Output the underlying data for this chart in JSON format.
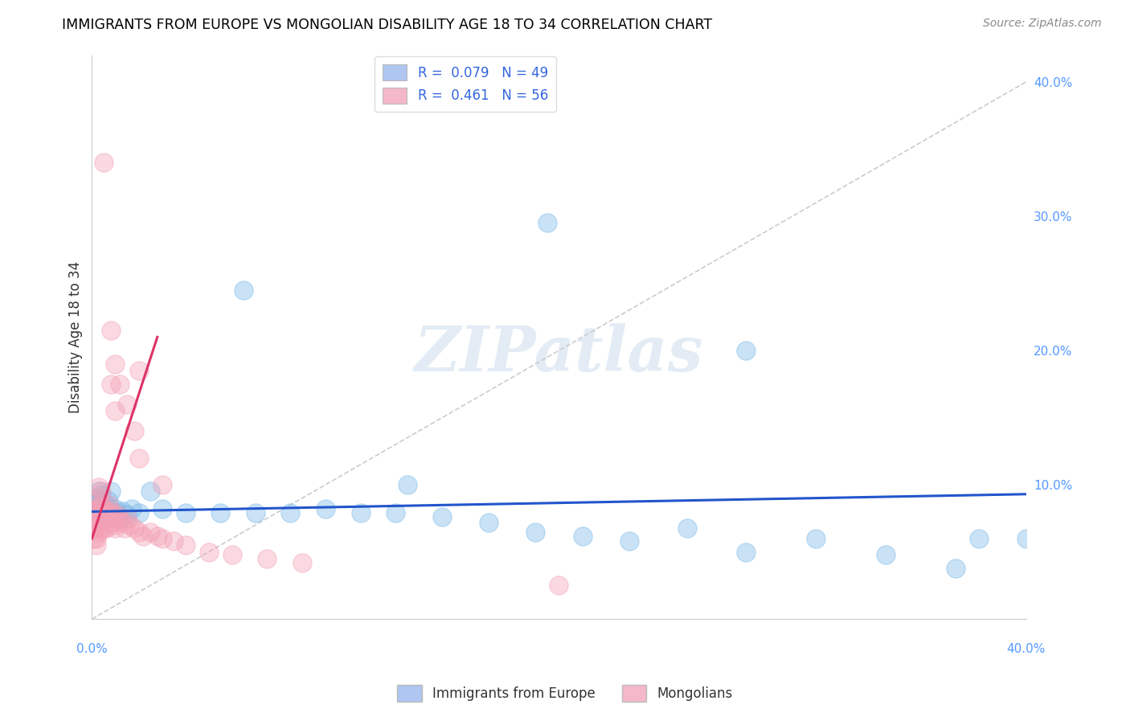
{
  "title": "IMMIGRANTS FROM EUROPE VS MONGOLIAN DISABILITY AGE 18 TO 34 CORRELATION CHART",
  "source": "Source: ZipAtlas.com",
  "ylabel": "Disability Age 18 to 34",
  "ylabel_right_vals": [
    0.1,
    0.2,
    0.3,
    0.4
  ],
  "ylabel_right_labels": [
    "10.0%",
    "20.0%",
    "30.0%",
    "40.0%"
  ],
  "xlim": [
    0.0,
    0.4
  ],
  "ylim": [
    0.0,
    0.42
  ],
  "legend_entry1": "R =  0.079   N = 49",
  "legend_entry2": "R =  0.461   N = 56",
  "legend_color1": "#aec6f0",
  "legend_color2": "#f4b8c8",
  "blue_color": "#7ab8e8",
  "pink_color": "#f4a0b5",
  "trend_blue": "#2255cc",
  "trend_pink": "#dd3366",
  "watermark": "ZIPatlas",
  "blue_scatter_x": [
    0.001,
    0.002,
    0.002,
    0.003,
    0.003,
    0.003,
    0.004,
    0.004,
    0.005,
    0.005,
    0.006,
    0.006,
    0.007,
    0.007,
    0.008,
    0.008,
    0.009,
    0.01,
    0.011,
    0.012,
    0.013,
    0.015,
    0.017,
    0.02,
    0.025,
    0.03,
    0.04,
    0.055,
    0.07,
    0.085,
    0.1,
    0.115,
    0.13,
    0.15,
    0.17,
    0.19,
    0.21,
    0.23,
    0.255,
    0.28,
    0.31,
    0.34,
    0.37,
    0.4,
    0.195,
    0.135,
    0.065,
    0.28,
    0.38
  ],
  "blue_scatter_y": [
    0.085,
    0.09,
    0.082,
    0.088,
    0.078,
    0.095,
    0.082,
    0.092,
    0.08,
    0.075,
    0.085,
    0.076,
    0.082,
    0.088,
    0.08,
    0.095,
    0.078,
    0.082,
    0.079,
    0.075,
    0.08,
    0.078,
    0.082,
    0.079,
    0.095,
    0.082,
    0.079,
    0.079,
    0.079,
    0.079,
    0.082,
    0.079,
    0.079,
    0.076,
    0.072,
    0.065,
    0.062,
    0.058,
    0.068,
    0.05,
    0.06,
    0.048,
    0.038,
    0.06,
    0.295,
    0.1,
    0.245,
    0.2,
    0.06
  ],
  "pink_scatter_x": [
    0.001,
    0.001,
    0.001,
    0.001,
    0.002,
    0.002,
    0.002,
    0.002,
    0.002,
    0.003,
    0.003,
    0.003,
    0.003,
    0.003,
    0.003,
    0.004,
    0.004,
    0.004,
    0.004,
    0.005,
    0.005,
    0.005,
    0.006,
    0.006,
    0.006,
    0.007,
    0.007,
    0.008,
    0.008,
    0.009,
    0.009,
    0.01,
    0.01,
    0.011,
    0.012,
    0.013,
    0.014,
    0.015,
    0.016,
    0.018,
    0.02,
    0.022,
    0.025,
    0.028,
    0.03,
    0.035,
    0.04,
    0.05,
    0.06,
    0.075,
    0.09,
    0.01,
    0.008,
    0.02,
    0.03,
    0.2
  ],
  "pink_scatter_y": [
    0.072,
    0.08,
    0.068,
    0.06,
    0.075,
    0.082,
    0.068,
    0.06,
    0.055,
    0.078,
    0.082,
    0.072,
    0.065,
    0.09,
    0.098,
    0.085,
    0.078,
    0.068,
    0.095,
    0.082,
    0.075,
    0.068,
    0.08,
    0.075,
    0.068,
    0.085,
    0.078,
    0.08,
    0.072,
    0.078,
    0.07,
    0.075,
    0.068,
    0.078,
    0.075,
    0.072,
    0.068,
    0.075,
    0.07,
    0.068,
    0.065,
    0.062,
    0.065,
    0.062,
    0.06,
    0.058,
    0.055,
    0.05,
    0.048,
    0.045,
    0.042,
    0.155,
    0.175,
    0.185,
    0.1,
    0.025
  ],
  "pink_high_x": [
    0.005,
    0.008,
    0.01,
    0.012,
    0.015,
    0.018,
    0.02
  ],
  "pink_high_y": [
    0.34,
    0.215,
    0.19,
    0.175,
    0.16,
    0.14,
    0.12
  ],
  "blue_trend_x": [
    0.0,
    0.4
  ],
  "blue_trend_y": [
    0.08,
    0.093
  ],
  "pink_trend_x": [
    0.0,
    0.028
  ],
  "pink_trend_y": [
    0.06,
    0.21
  ]
}
